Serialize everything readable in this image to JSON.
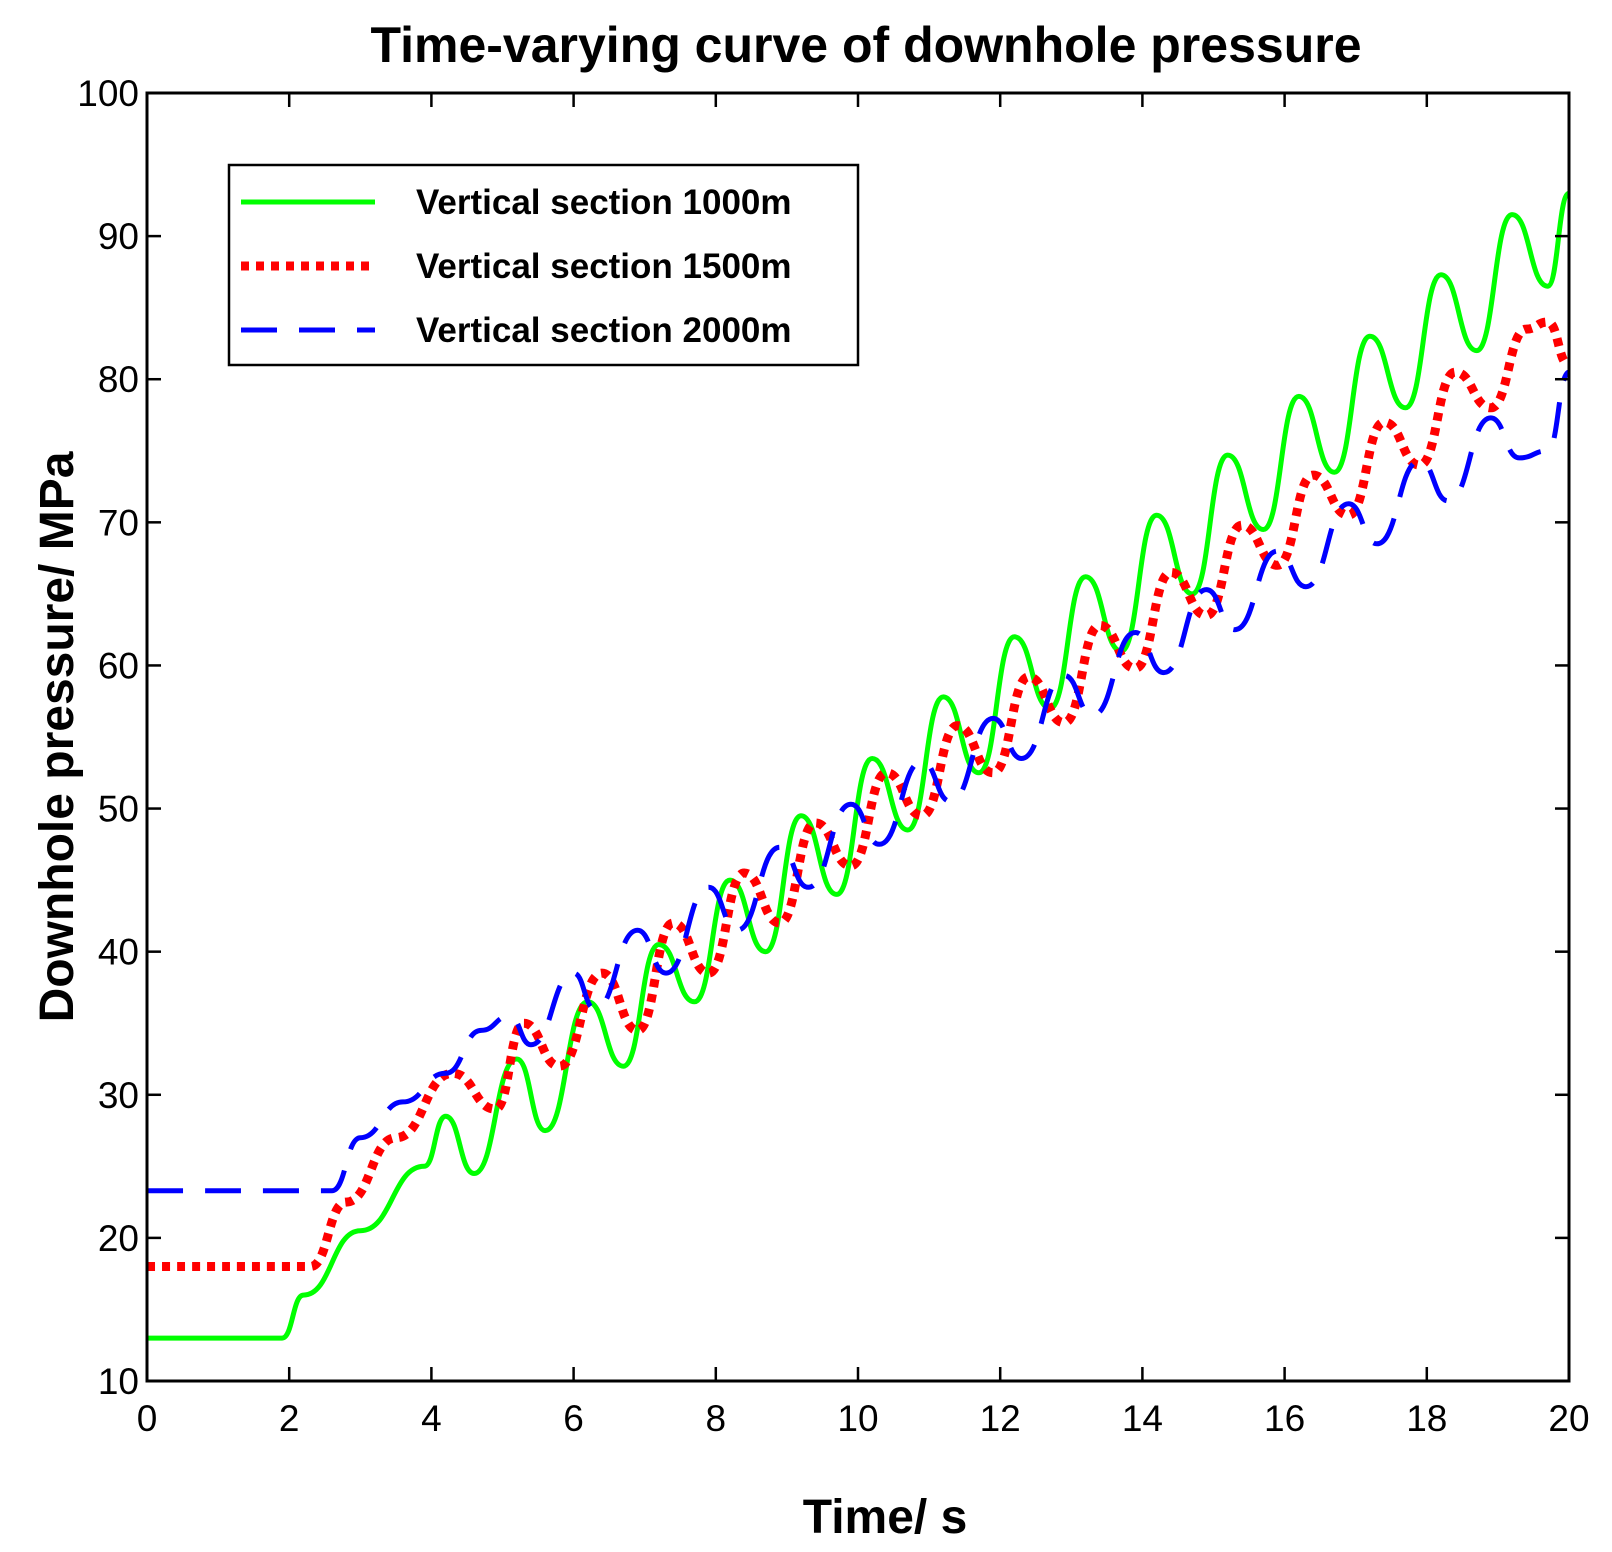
{
  "chart_data": {
    "type": "line",
    "title": "Time-varying curve of downhole pressure",
    "xlabel": "Time/ s",
    "ylabel": "Downhole pressure/ MPa",
    "xlim": [
      0,
      20
    ],
    "ylim": [
      10,
      100
    ],
    "xticks": [
      "0",
      "2",
      "4",
      "6",
      "8",
      "10",
      "12",
      "14",
      "16",
      "18",
      "20"
    ],
    "yticks": [
      "10",
      "20",
      "30",
      "40",
      "50",
      "60",
      "70",
      "80",
      "90",
      "100"
    ],
    "grid": false,
    "legend_position": "top-left",
    "series": [
      {
        "name": "Vertical section 1000m",
        "color": "#00ff00",
        "style": "solid",
        "x": [
          0,
          1.9,
          2.2,
          3.0,
          3.9,
          4.2,
          4.6,
          5.2,
          5.6,
          6.2,
          6.7,
          7.2,
          7.7,
          8.2,
          8.7,
          9.2,
          9.7,
          10.2,
          10.7,
          11.2,
          11.7,
          12.2,
          12.7,
          13.2,
          13.7,
          14.2,
          14.7,
          15.2,
          15.7,
          16.2,
          16.7,
          17.2,
          17.7,
          18.2,
          18.7,
          19.2,
          19.7,
          20.0
        ],
        "y": [
          13.0,
          13.0,
          16.0,
          20.5,
          25.0,
          28.5,
          24.5,
          32.5,
          27.5,
          36.5,
          32.0,
          40.5,
          36.5,
          45.0,
          40.0,
          49.5,
          44.0,
          53.5,
          48.5,
          57.8,
          52.5,
          62.0,
          57.0,
          66.2,
          61.0,
          70.5,
          65.0,
          74.7,
          69.5,
          78.8,
          73.5,
          83.0,
          78.0,
          87.3,
          82.0,
          91.5,
          86.5,
          93.0
        ]
      },
      {
        "name": "Vertical section 1500m",
        "color": "#ff0000",
        "style": "dotted",
        "x": [
          0,
          2.3,
          2.8,
          3.5,
          4.3,
          4.9,
          5.3,
          5.8,
          6.4,
          6.9,
          7.4,
          7.9,
          8.4,
          8.9,
          9.4,
          9.9,
          10.4,
          10.9,
          11.4,
          11.9,
          12.4,
          12.9,
          13.4,
          13.9,
          14.4,
          14.9,
          15.4,
          15.9,
          16.4,
          16.9,
          17.4,
          17.9,
          18.4,
          18.9,
          19.4,
          19.7,
          20.0
        ],
        "y": [
          18.0,
          18.0,
          22.5,
          27.0,
          31.5,
          29.0,
          35.0,
          32.0,
          38.5,
          34.5,
          42.0,
          38.5,
          45.5,
          42.0,
          49.0,
          46.0,
          52.5,
          49.5,
          55.8,
          52.5,
          59.2,
          56.0,
          62.8,
          59.8,
          66.5,
          63.5,
          69.8,
          67.0,
          73.3,
          70.5,
          77.0,
          74.0,
          80.5,
          78.0,
          83.5,
          84.0,
          81.0
        ]
      },
      {
        "name": "Vertical section 2000m",
        "color": "#0000ff",
        "style": "dashed",
        "x": [
          0,
          2.6,
          3.0,
          3.6,
          4.2,
          4.7,
          5.1,
          5.4,
          6.0,
          6.3,
          6.9,
          7.3,
          7.9,
          8.3,
          8.9,
          9.3,
          9.9,
          10.3,
          10.9,
          11.3,
          11.9,
          12.3,
          12.9,
          13.3,
          13.9,
          14.3,
          14.9,
          15.3,
          15.9,
          16.3,
          16.9,
          17.3,
          17.9,
          18.3,
          18.9,
          19.3,
          19.7,
          20.0
        ],
        "y": [
          23.3,
          23.3,
          27.0,
          29.5,
          31.5,
          34.5,
          35.5,
          33.5,
          38.5,
          36.0,
          41.5,
          38.5,
          44.5,
          41.5,
          47.3,
          44.5,
          50.3,
          47.5,
          53.3,
          50.5,
          56.3,
          53.5,
          59.3,
          56.5,
          62.3,
          59.5,
          65.3,
          62.5,
          68.0,
          65.5,
          71.3,
          68.5,
          74.3,
          71.5,
          77.3,
          74.5,
          75.0,
          80.5
        ]
      }
    ]
  }
}
